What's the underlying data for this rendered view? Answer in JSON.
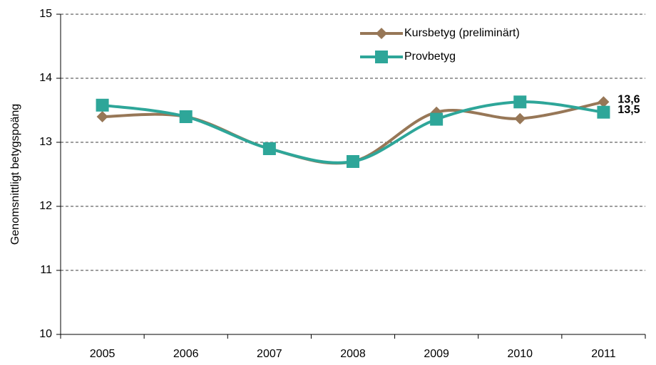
{
  "chart_data": {
    "type": "line",
    "y_label": "Genomsnittligt betygspoäng",
    "categories": [
      "2005",
      "2006",
      "2007",
      "2008",
      "2009",
      "2010",
      "2011"
    ],
    "series": [
      {
        "name": "Kursbetyg (preliminärt)",
        "color": "#977757",
        "marker": "diamond",
        "values": [
          13.4,
          13.4,
          12.9,
          12.7,
          13.47,
          13.37,
          13.63
        ],
        "value_labels": [
          null,
          null,
          null,
          null,
          null,
          null,
          "13,6"
        ]
      },
      {
        "name": "Provbetyg",
        "color": "#2ea699",
        "marker": "square",
        "values": [
          13.58,
          13.4,
          12.9,
          12.7,
          13.36,
          13.63,
          13.47
        ],
        "value_labels": [
          null,
          null,
          null,
          null,
          null,
          null,
          "13,5"
        ]
      }
    ],
    "ylim": [
      10,
      15
    ],
    "yticks": [
      10,
      11,
      12,
      13,
      14,
      15
    ],
    "grid": true,
    "smooth": true,
    "legend": "top"
  }
}
